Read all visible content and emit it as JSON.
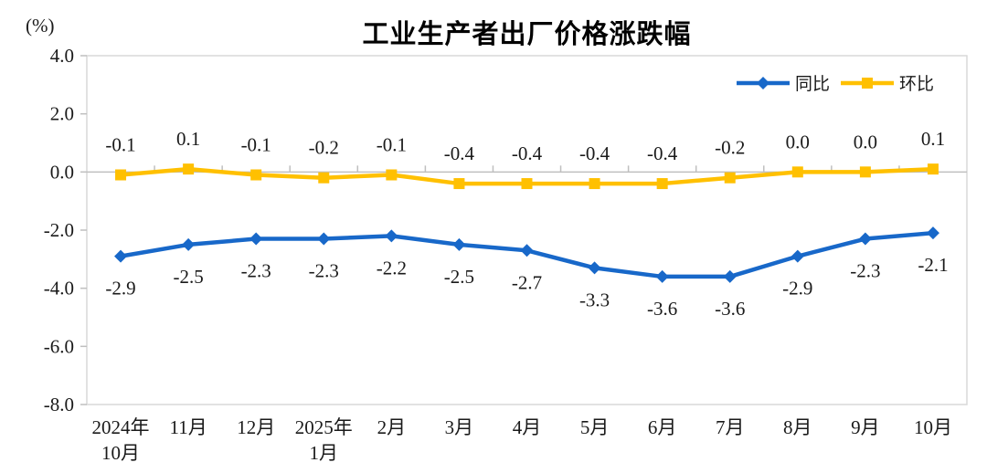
{
  "chart_data": {
    "type": "line",
    "title": "工业生产者出厂价格涨跌幅",
    "ylabel": "(%)",
    "categories": [
      "2024年\n10月",
      "11月",
      "12月",
      "2025年\n1月",
      "2月",
      "3月",
      "4月",
      "5月",
      "6月",
      "7月",
      "8月",
      "9月",
      "10月"
    ],
    "series": [
      {
        "name": "同比",
        "color": "#1868C9",
        "marker": "diamond",
        "label_position": "below",
        "values": [
          -2.9,
          -2.5,
          -2.3,
          -2.3,
          -2.2,
          -2.5,
          -2.7,
          -3.3,
          -3.6,
          -3.6,
          -2.9,
          -2.3,
          -2.1
        ]
      },
      {
        "name": "环比",
        "color": "#FFC000",
        "marker": "square",
        "label_position": "above",
        "values": [
          -0.1,
          0.1,
          -0.1,
          -0.2,
          -0.1,
          -0.4,
          -0.4,
          -0.4,
          -0.4,
          -0.2,
          0.0,
          0.0,
          0.1
        ]
      }
    ],
    "ylim": [
      -8.0,
      4.0
    ],
    "ytick_step": 2.0,
    "yticks": [
      "4.0",
      "2.0",
      "0.0",
      "-2.0",
      "-4.0",
      "-6.0",
      "-8.0"
    ],
    "grid": false,
    "legend_position": "top-right-inside",
    "colors": {
      "plot_border": "#D9D9D9",
      "zero_axis": "#BFBFBF",
      "tick": "#BFBFBF",
      "label_text": "#1a1a1a",
      "title_text": "#000000"
    }
  }
}
